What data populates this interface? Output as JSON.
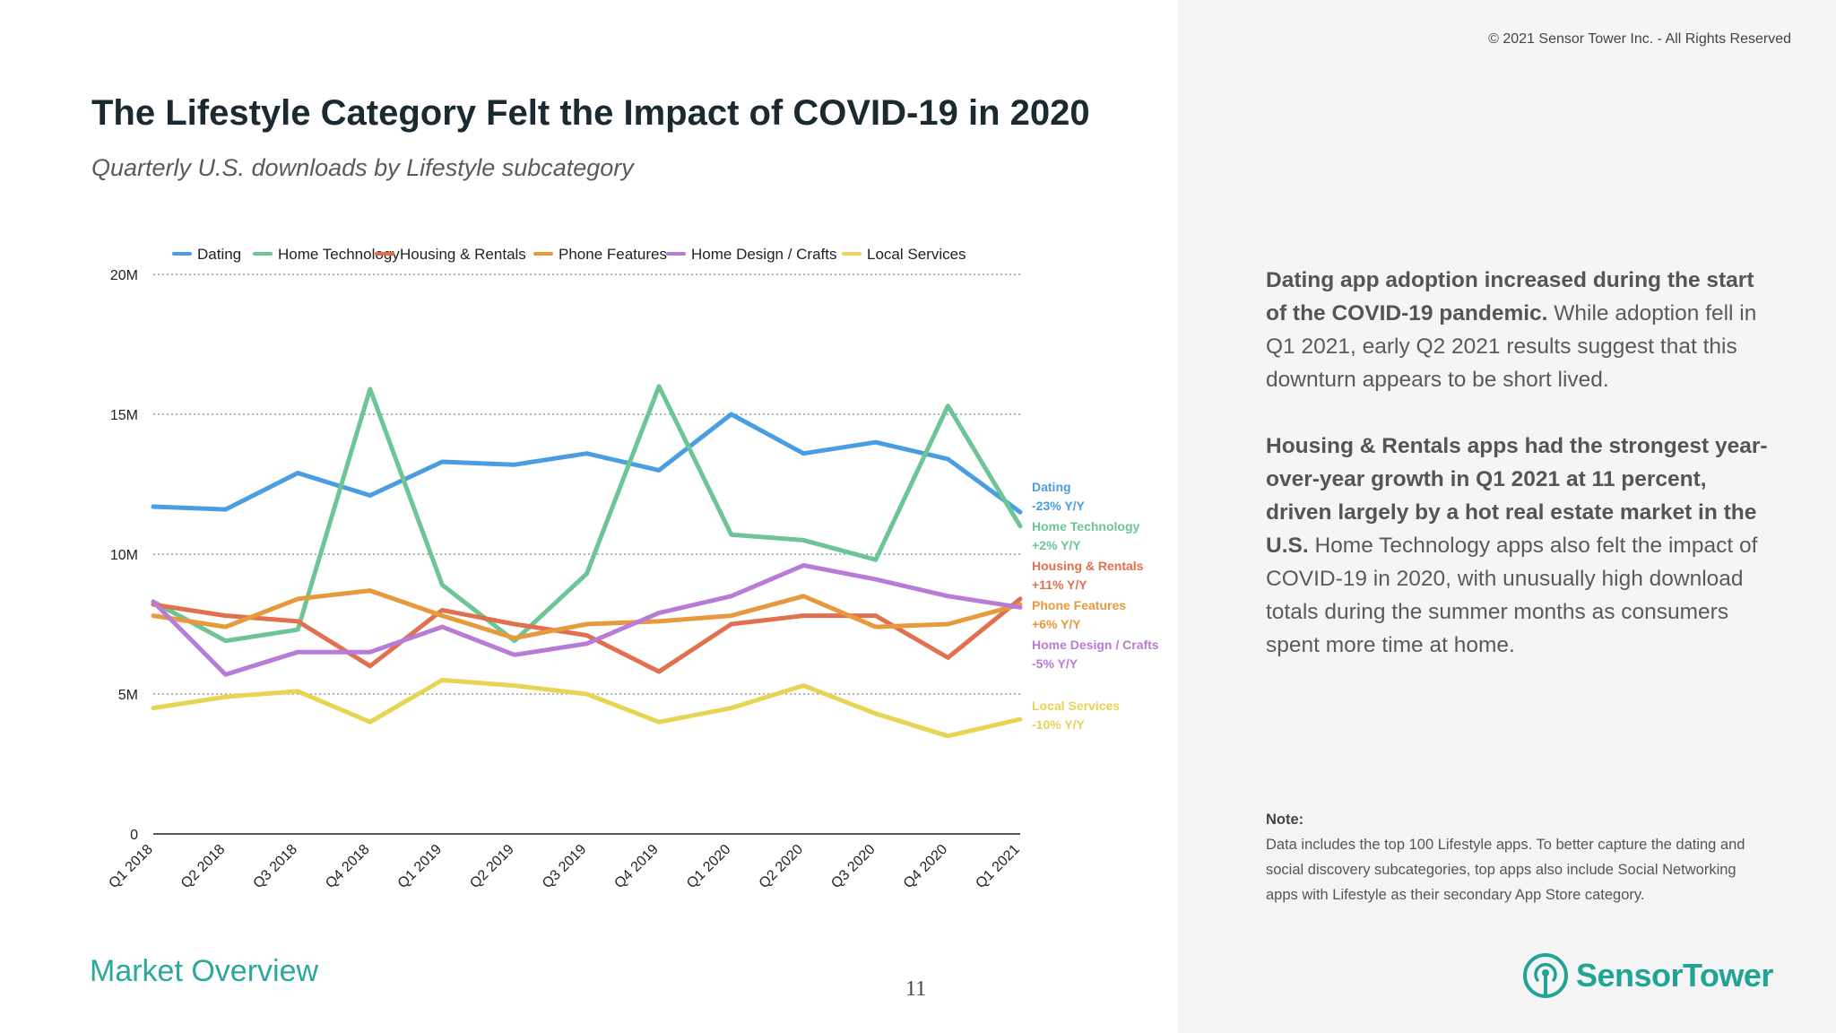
{
  "header": {
    "title": "The Lifestyle Category Felt the Impact of COVID-19 in 2020",
    "subtitle": "Quarterly U.S. downloads by Lifestyle subcategory",
    "copyright": "© 2021 Sensor Tower Inc. - All Rights Reserved"
  },
  "insights": {
    "p1_bold": "Dating app adoption increased during the start of the COVID-19 pandemic.",
    "p1_text": " While adoption fell in Q1 2021, early Q2 2021 results suggest that this downturn appears to be short lived.",
    "p2_bold": "Housing & Rentals apps had the strongest year-over-year growth in Q1 2021 at 11 percent, driven largely by a hot real estate market in the U.S.",
    "p2_text": " Home Technology apps also felt the impact of COVID-19 in 2020, with unusually high download totals during the summer months as consumers spent more time at home."
  },
  "note": {
    "title": "Note:",
    "text": "Data includes the top 100 Lifestyle apps. To better capture the dating and social discovery subcategories, top apps also include Social Networking apps with Lifestyle as their secondary App Store category."
  },
  "footer": {
    "section": "Market Overview",
    "page": "11",
    "brand": "SensorTower"
  },
  "chart_data": {
    "type": "line",
    "title": "Quarterly U.S. downloads by Lifestyle subcategory",
    "xlabel": "",
    "ylabel": "",
    "ylim": [
      0,
      20
    ],
    "yticks": [
      0,
      5,
      10,
      15,
      20
    ],
    "ytick_labels": [
      "0",
      "5M",
      "10M",
      "15M",
      "20M"
    ],
    "legend_position": "top",
    "grid": "horizontal dotted",
    "categories": [
      "Q1 2018",
      "Q2 2018",
      "Q3 2018",
      "Q4 2018",
      "Q1 2019",
      "Q2 2019",
      "Q3 2019",
      "Q4 2019",
      "Q1 2020",
      "Q2 2020",
      "Q3 2020",
      "Q4 2020",
      "Q1 2021"
    ],
    "series": [
      {
        "name": "Dating",
        "color": "#4a9de0",
        "label": "Dating",
        "change": "-23% Y/Y",
        "values": [
          11.7,
          11.6,
          12.9,
          12.1,
          13.3,
          13.2,
          13.6,
          13.0,
          15.0,
          13.6,
          14.0,
          13.4,
          11.5
        ]
      },
      {
        "name": "Home Technology",
        "color": "#6dc596",
        "label": "Home Technology",
        "change": "+2% Y/Y",
        "values": [
          8.3,
          6.9,
          7.3,
          15.9,
          8.9,
          6.9,
          9.3,
          16.0,
          10.7,
          10.5,
          9.8,
          15.3,
          11.0
        ]
      },
      {
        "name": "Housing & Rentals",
        "color": "#e0704e",
        "label": "Housing & Rentals",
        "change": "+11% Y/Y",
        "values": [
          8.2,
          7.8,
          7.6,
          6.0,
          8.0,
          7.5,
          7.1,
          5.8,
          7.5,
          7.8,
          7.8,
          6.3,
          8.4
        ]
      },
      {
        "name": "Phone Features",
        "color": "#e8993c",
        "label": "Phone Features",
        "change": "+6% Y/Y",
        "values": [
          7.8,
          7.4,
          8.4,
          8.7,
          7.8,
          7.0,
          7.5,
          7.6,
          7.8,
          8.5,
          7.4,
          7.5,
          8.2
        ]
      },
      {
        "name": "Home Design / Crafts",
        "color": "#b87bd6",
        "label": "Home Design / Crafts",
        "change": "-5% Y/Y",
        "values": [
          8.3,
          5.7,
          6.5,
          6.5,
          7.4,
          6.4,
          6.8,
          7.9,
          8.5,
          9.6,
          9.1,
          8.5,
          8.1
        ]
      },
      {
        "name": "Local Services",
        "color": "#e6d452",
        "label": "Local Services",
        "change": "-10% Y/Y",
        "values": [
          4.5,
          4.9,
          5.1,
          4.0,
          5.5,
          5.3,
          5.0,
          4.0,
          4.5,
          5.3,
          4.3,
          3.5,
          4.1
        ]
      }
    ]
  }
}
